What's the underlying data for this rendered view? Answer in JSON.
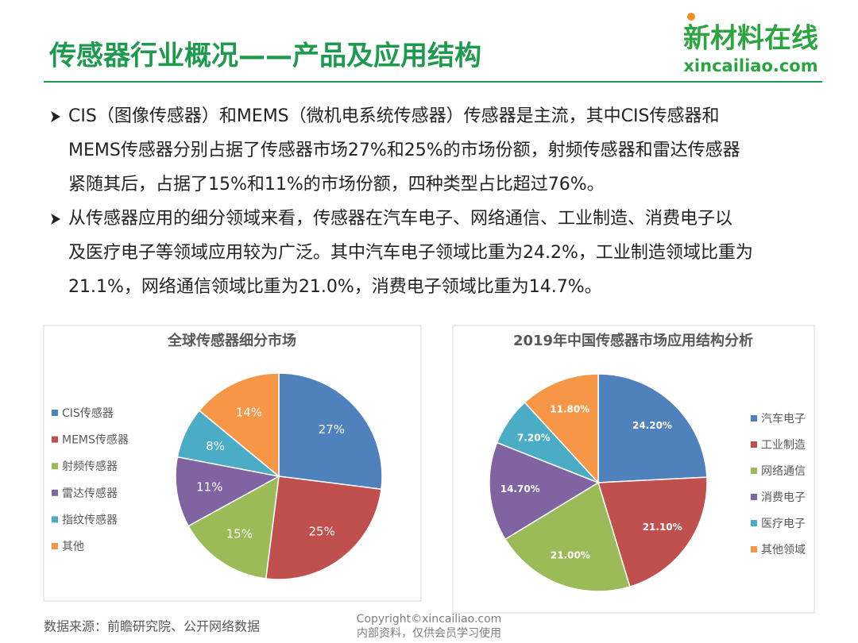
{
  "header": {
    "title": "传感器行业概况——产品及应用结构",
    "logo": "新材料在线",
    "logo_url": "xincailiao.com"
  },
  "bullets": [
    {
      "lines": [
        "CIS（图像传感器）和MEMS（微机电系统传感器）传感器是主流，其中CIS传感器和",
        "MEMS传感器分别占据了传感器市场27%和25%的市场份额，射频传感器和雷达传感器",
        "紧随其后，占据了15%和11%的市场份额，四种类型占比超过76%。"
      ]
    },
    {
      "lines": [
        "从传感器应用的细分领域来看，传感器在汽车电子、网络通信、工业制造、消费电子以",
        "及医疗电子等领域应用较为广泛。其中汽车电子领域比重为24.2%，工业制造领域比重为",
        "21.1%，网络通信领域比重为21.0%，消费电子领域比重为14.7%。"
      ]
    }
  ],
  "chart_data": [
    {
      "type": "pie",
      "title": "全球传感器细分市场",
      "categories": [
        "CIS传感器",
        "MEMS传感器",
        "射频传感器",
        "雷达传感器",
        "指纹传感器",
        "其他"
      ],
      "values": [
        27,
        25,
        15,
        11,
        8,
        14
      ],
      "value_labels": [
        "27%",
        "25%",
        "15%",
        "11%",
        "8%",
        "14%"
      ],
      "colors": [
        "#4f81bd",
        "#c0504d",
        "#9bbb59",
        "#8064a2",
        "#4bacc6",
        "#f79646"
      ],
      "legend": "left"
    },
    {
      "type": "pie",
      "title": "2019年中国传感器市场应用结构分析",
      "categories": [
        "汽车电子",
        "工业制造",
        "网络通信",
        "消费电子",
        "医疗电子",
        "其他领域"
      ],
      "values": [
        24.2,
        21.1,
        21.0,
        14.7,
        7.2,
        11.8
      ],
      "value_labels": [
        "24.20%",
        "21.10%",
        "21.00%",
        "14.70%",
        "7.20%",
        "11.80%"
      ],
      "colors": [
        "#4f81bd",
        "#c0504d",
        "#9bbb59",
        "#8064a2",
        "#4bacc6",
        "#f79646"
      ],
      "legend": "right"
    }
  ],
  "footer": {
    "source": "数据来源：前瞻研究院、公开网络数据",
    "copyright": "Copyright©xincailiao.com",
    "note": "内部资料，仅供会员学习使用"
  }
}
